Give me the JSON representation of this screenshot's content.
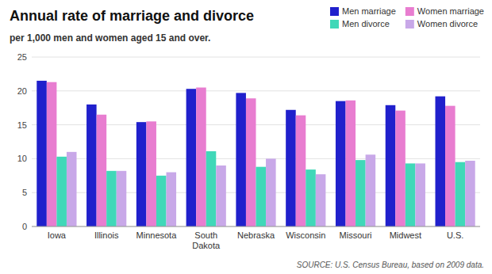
{
  "chart_data": {
    "type": "bar",
    "title": "Annual rate of marriage and divorce",
    "subtitle": "per 1,000 men and women aged 15 and over.",
    "annotations": [
      "SOURCE: U.S. Census Bureau, based on 2009 data."
    ],
    "categories": [
      "Iowa",
      "Illinois",
      "Minnesota",
      "South\nDakota",
      "Nebraska",
      "Wisconsin",
      "Missouri",
      "Midwest",
      "U.S."
    ],
    "series": [
      {
        "name": "Men marriage",
        "color": "#2020cc",
        "values": [
          21.5,
          18.0,
          15.4,
          20.3,
          19.7,
          17.2,
          18.5,
          17.9,
          19.2
        ]
      },
      {
        "name": "Women marriage",
        "color": "#e87dd0",
        "values": [
          21.3,
          16.5,
          15.5,
          20.5,
          18.9,
          16.4,
          18.6,
          17.1,
          17.8
        ]
      },
      {
        "name": "Men divorce",
        "color": "#40d8b8",
        "values": [
          10.3,
          8.2,
          7.5,
          11.1,
          8.8,
          8.4,
          9.8,
          9.3,
          9.5
        ]
      },
      {
        "name": "Women divorce",
        "color": "#c8a8e8",
        "values": [
          11.0,
          8.2,
          8.0,
          9.0,
          10.0,
          7.7,
          10.6,
          9.3,
          9.7
        ]
      }
    ],
    "ylim": [
      0,
      25
    ],
    "yticks": [
      0,
      5,
      10,
      15,
      20,
      25
    ],
    "grid": true,
    "legend": "upper right"
  }
}
